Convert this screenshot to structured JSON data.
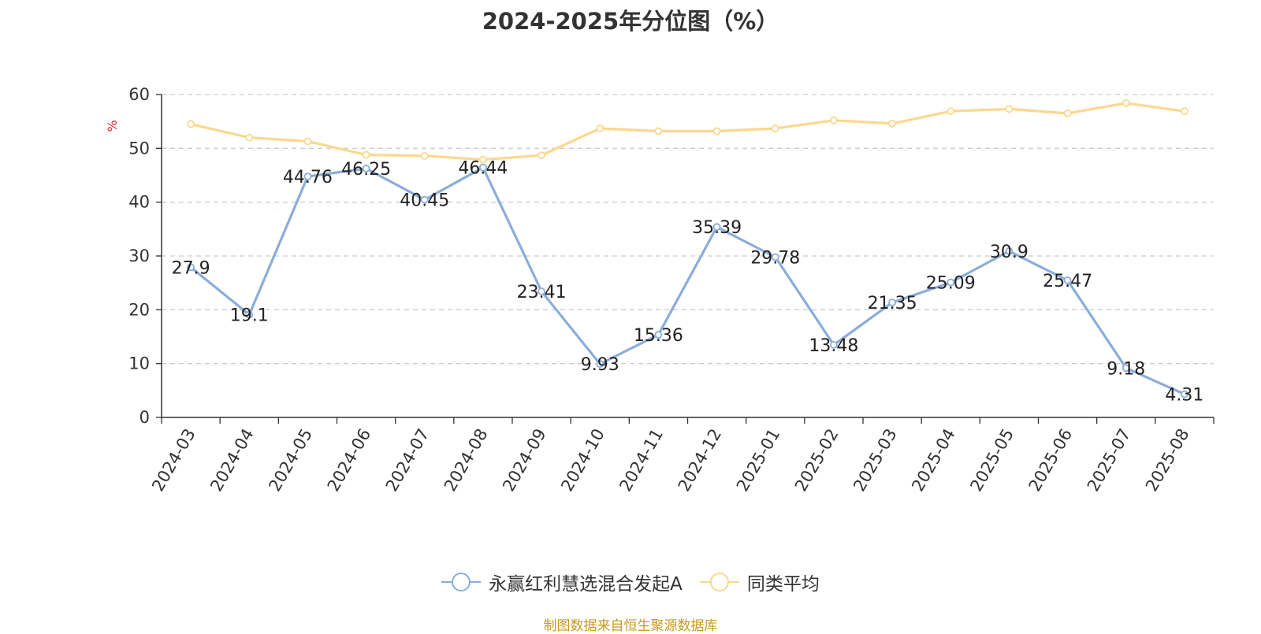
{
  "title": "2024-2025年分位图（%）",
  "source": "制图数据来自恒生聚源数据库",
  "colors": {
    "series1": "#8badd9",
    "series2": "#fbd88f",
    "unit": "#e02020",
    "source": "#c99a1f"
  },
  "chart_data": {
    "type": "line",
    "title": "2024-2025年分位图（%）",
    "ylabel": "%",
    "ylim": [
      0,
      60
    ],
    "yticks": [
      0,
      10,
      20,
      30,
      40,
      50,
      60
    ],
    "grid": "horizontal dashed",
    "legend_position": "bottom",
    "categories": [
      "2024-03",
      "2024-04",
      "2024-05",
      "2024-06",
      "2024-07",
      "2024-08",
      "2024-09",
      "2024-10",
      "2024-11",
      "2024-12",
      "2025-01",
      "2025-02",
      "2025-03",
      "2025-04",
      "2025-05",
      "2025-06",
      "2025-07",
      "2025-08"
    ],
    "series": [
      {
        "name": "永赢红利慧选混合发起A",
        "color": "#8badd9",
        "show_labels": true,
        "values": [
          27.9,
          19.1,
          44.76,
          46.25,
          40.45,
          46.44,
          23.41,
          9.93,
          15.36,
          35.39,
          29.78,
          13.48,
          21.35,
          25.09,
          30.9,
          25.47,
          9.18,
          4.31
        ]
      },
      {
        "name": "同类平均",
        "color": "#fbd88f",
        "show_labels": false,
        "values": [
          54.5,
          52.0,
          51.3,
          48.8,
          48.6,
          47.9,
          48.7,
          53.7,
          53.2,
          53.2,
          53.7,
          55.2,
          54.6,
          56.9,
          57.3,
          56.5,
          58.4,
          56.9
        ]
      }
    ]
  }
}
